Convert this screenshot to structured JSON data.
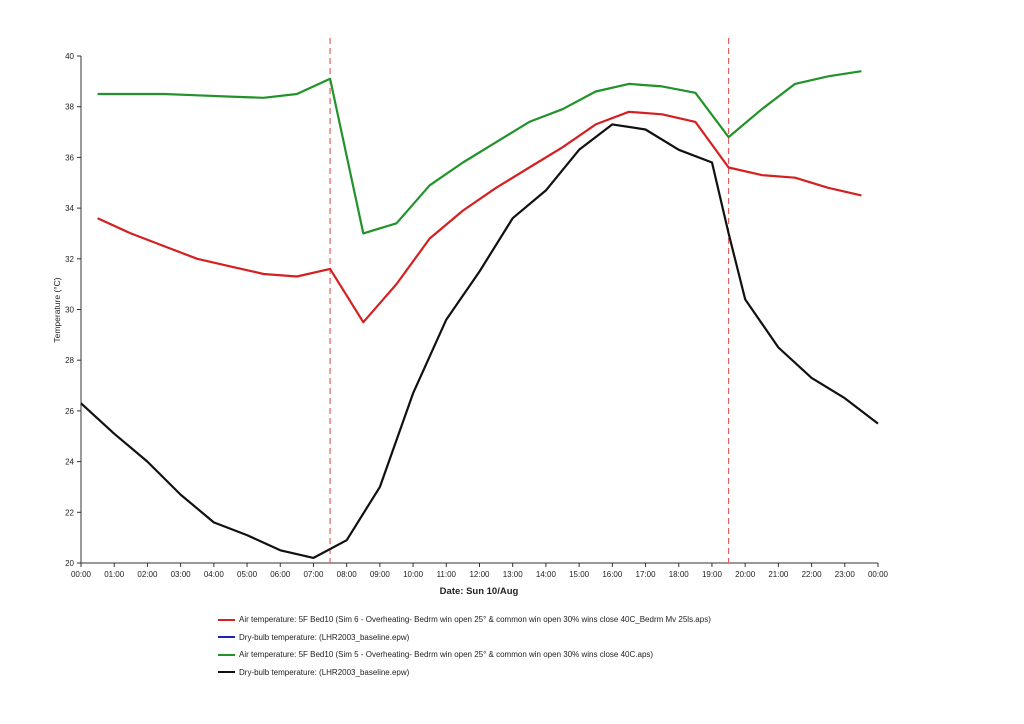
{
  "chart_data": {
    "type": "line",
    "xlabel": "Date: Sun 10/Aug",
    "ylabel": "Temperature (°C)",
    "ylim": [
      20,
      40
    ],
    "xlim": [
      0,
      24
    ],
    "x_tick_labels": [
      "00:00",
      "01:00",
      "02:00",
      "03:00",
      "04:00",
      "05:00",
      "06:00",
      "07:00",
      "08:00",
      "09:00",
      "10:00",
      "11:00",
      "12:00",
      "13:00",
      "14:00",
      "15:00",
      "16:00",
      "17:00",
      "18:00",
      "19:00",
      "20:00",
      "21:00",
      "22:00",
      "23:00",
      "00:00"
    ],
    "y_ticks": [
      20,
      22,
      24,
      26,
      28,
      30,
      32,
      34,
      36,
      38,
      40
    ],
    "grid": false,
    "vertical_markers": [
      {
        "x": 7.5,
        "style": "dashed",
        "color": "#e06060"
      },
      {
        "x": 19.5,
        "style": "dashed",
        "color": "#e06060"
      }
    ],
    "series": [
      {
        "name": "Air temperature: 5F Bed10 (Sim 6 - Overheating- Bedrm win open 25° & common win open 30% wins close 40C_Bedrm Mv 25ls.aps)",
        "color": "#d42020",
        "x": [
          0.5,
          1.5,
          2.5,
          3.5,
          4.5,
          5.5,
          6.5,
          7.5,
          8.5,
          9.5,
          10.5,
          11.5,
          12.5,
          13.5,
          14.5,
          15.5,
          16.5,
          17.5,
          18.5,
          19.5,
          20.5,
          21.5,
          22.5,
          23.5
        ],
        "values": [
          33.6,
          33.0,
          32.5,
          32.0,
          31.7,
          31.4,
          31.3,
          31.6,
          29.5,
          31.0,
          32.8,
          33.9,
          34.8,
          35.6,
          36.4,
          37.3,
          37.8,
          37.7,
          37.4,
          35.6,
          35.3,
          35.2,
          34.8,
          34.5
        ]
      },
      {
        "name": "Dry-bulb temperature:  (LHR2003_baseline.epw)",
        "color": "#2020b0",
        "x": [],
        "values": []
      },
      {
        "name": "Air temperature: 5F Bed10 (Sim 5 - Overheating- Bedrm win open 25° & common win open 30% wins close 40C.aps)",
        "color": "#22922a",
        "x": [
          0.5,
          1.5,
          2.5,
          3.5,
          4.5,
          5.5,
          6.5,
          7.5,
          8.5,
          9.5,
          10.5,
          11.5,
          12.5,
          13.5,
          14.5,
          15.5,
          16.5,
          17.5,
          18.5,
          19.5,
          20.5,
          21.5,
          22.5,
          23.5
        ],
        "values": [
          38.5,
          38.5,
          38.5,
          38.45,
          38.4,
          38.35,
          38.5,
          39.1,
          33.0,
          33.4,
          34.9,
          35.8,
          36.6,
          37.4,
          37.9,
          38.6,
          38.9,
          38.8,
          38.55,
          36.8,
          37.9,
          38.9,
          39.2,
          39.4
        ]
      },
      {
        "name": "Dry-bulb temperature:  (LHR2003_baseline.epw)",
        "color": "#111111",
        "x": [
          0,
          1,
          2,
          3,
          4,
          5,
          6,
          7,
          8,
          9,
          10,
          11,
          12,
          13,
          14,
          15,
          16,
          17,
          18,
          19,
          19.5,
          20,
          21,
          22,
          23,
          24
        ],
        "values": [
          26.3,
          25.1,
          24.0,
          22.7,
          21.6,
          21.1,
          20.5,
          20.2,
          20.9,
          23.0,
          26.7,
          29.6,
          31.5,
          33.6,
          34.7,
          36.3,
          37.3,
          37.1,
          36.3,
          35.8,
          33.0,
          30.4,
          28.5,
          27.3,
          26.5,
          25.5
        ]
      }
    ]
  }
}
